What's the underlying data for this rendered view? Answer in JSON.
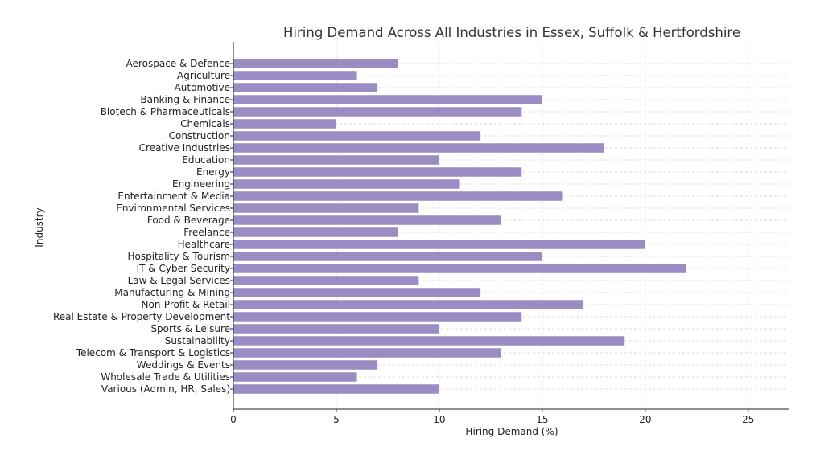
{
  "chart_data": {
    "type": "bar",
    "orientation": "horizontal",
    "title": "Hiring Demand Across All Industries in Essex, Suffolk & Hertfordshire",
    "xlabel": "Hiring Demand (%)",
    "ylabel": "Industry",
    "xlim": [
      0,
      27
    ],
    "xticks": [
      0,
      5,
      10,
      15,
      20,
      25
    ],
    "grid": true,
    "bar_color": "#9b8cc4",
    "categories": [
      "Aerospace & Defence",
      "Agriculture",
      "Automotive",
      "Banking & Finance",
      "Biotech & Pharmaceuticals",
      "Chemicals",
      "Construction",
      "Creative Industries",
      "Education",
      "Energy",
      "Engineering",
      "Entertainment & Media",
      "Environmental Services",
      "Food & Beverage",
      "Freelance",
      "Healthcare",
      "Hospitality & Tourism",
      "IT & Cyber Security",
      "Law & Legal Services",
      "Manufacturing & Mining",
      "Non-Profit & Retail",
      "Real Estate & Property Development",
      "Sports & Leisure",
      "Sustainability",
      "Telecom & Transport & Logistics",
      "Weddings & Events",
      "Wholesale Trade & Utilities",
      "Various (Admin, HR, Sales)"
    ],
    "values": [
      8,
      6,
      7,
      15,
      14,
      5,
      12,
      18,
      10,
      14,
      11,
      16,
      9,
      13,
      8,
      20,
      15,
      22,
      9,
      12,
      17,
      14,
      10,
      19,
      13,
      7,
      6,
      10
    ]
  }
}
